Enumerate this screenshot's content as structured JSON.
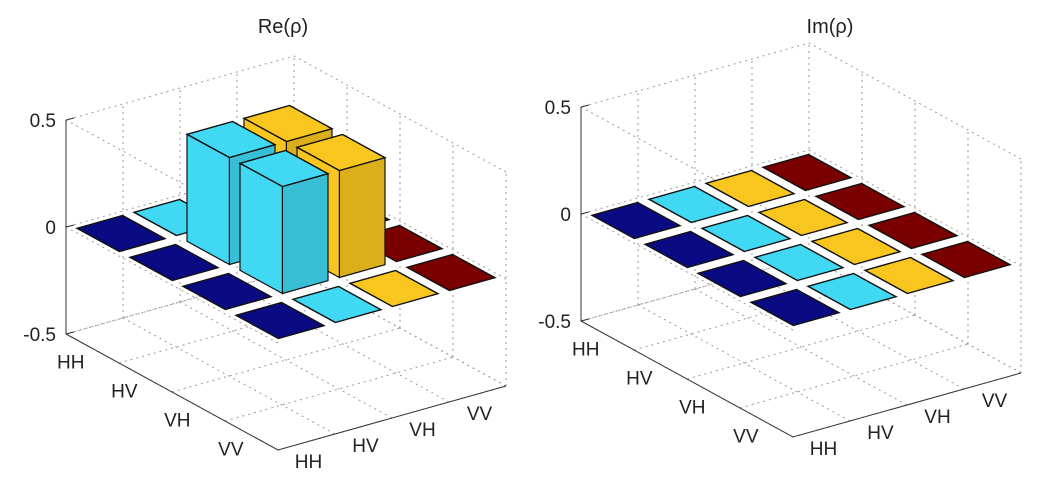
{
  "chart_data": [
    {
      "type": "bar3d",
      "title": "Re(ρ)",
      "row_labels": [
        "HH",
        "HV",
        "VH",
        "VV"
      ],
      "col_labels": [
        "HH",
        "HV",
        "VH",
        "VV"
      ],
      "zlim": [
        -0.5,
        0.5
      ],
      "zticks": [
        "0.5",
        "0",
        "-0.5"
      ],
      "grid": true,
      "values": [
        [
          0.0,
          0.0,
          0.0,
          0.0
        ],
        [
          0.0,
          0.5,
          0.5,
          0.0
        ],
        [
          0.0,
          0.5,
          0.5,
          0.0
        ],
        [
          0.0,
          0.0,
          0.0,
          0.0
        ]
      ]
    },
    {
      "type": "bar3d",
      "title": "Im(ρ)",
      "row_labels": [
        "HH",
        "HV",
        "VH",
        "VV"
      ],
      "col_labels": [
        "HH",
        "HV",
        "VH",
        "VV"
      ],
      "zlim": [
        -0.5,
        0.5
      ],
      "zticks": [
        "0.5",
        "0",
        "-0.5"
      ],
      "grid": true,
      "values": [
        [
          0.0,
          0.0,
          0.0,
          0.0
        ],
        [
          0.0,
          0.0,
          0.0,
          0.0
        ],
        [
          0.0,
          0.0,
          0.0,
          0.0
        ],
        [
          0.0,
          0.0,
          0.0,
          0.0
        ]
      ]
    }
  ],
  "colors": {
    "column_colors": [
      "#0a0a82",
      "#40d8f2",
      "#f9c61f",
      "#7a0000"
    ],
    "grid": "#9a9a9a",
    "edge": "#111111"
  }
}
